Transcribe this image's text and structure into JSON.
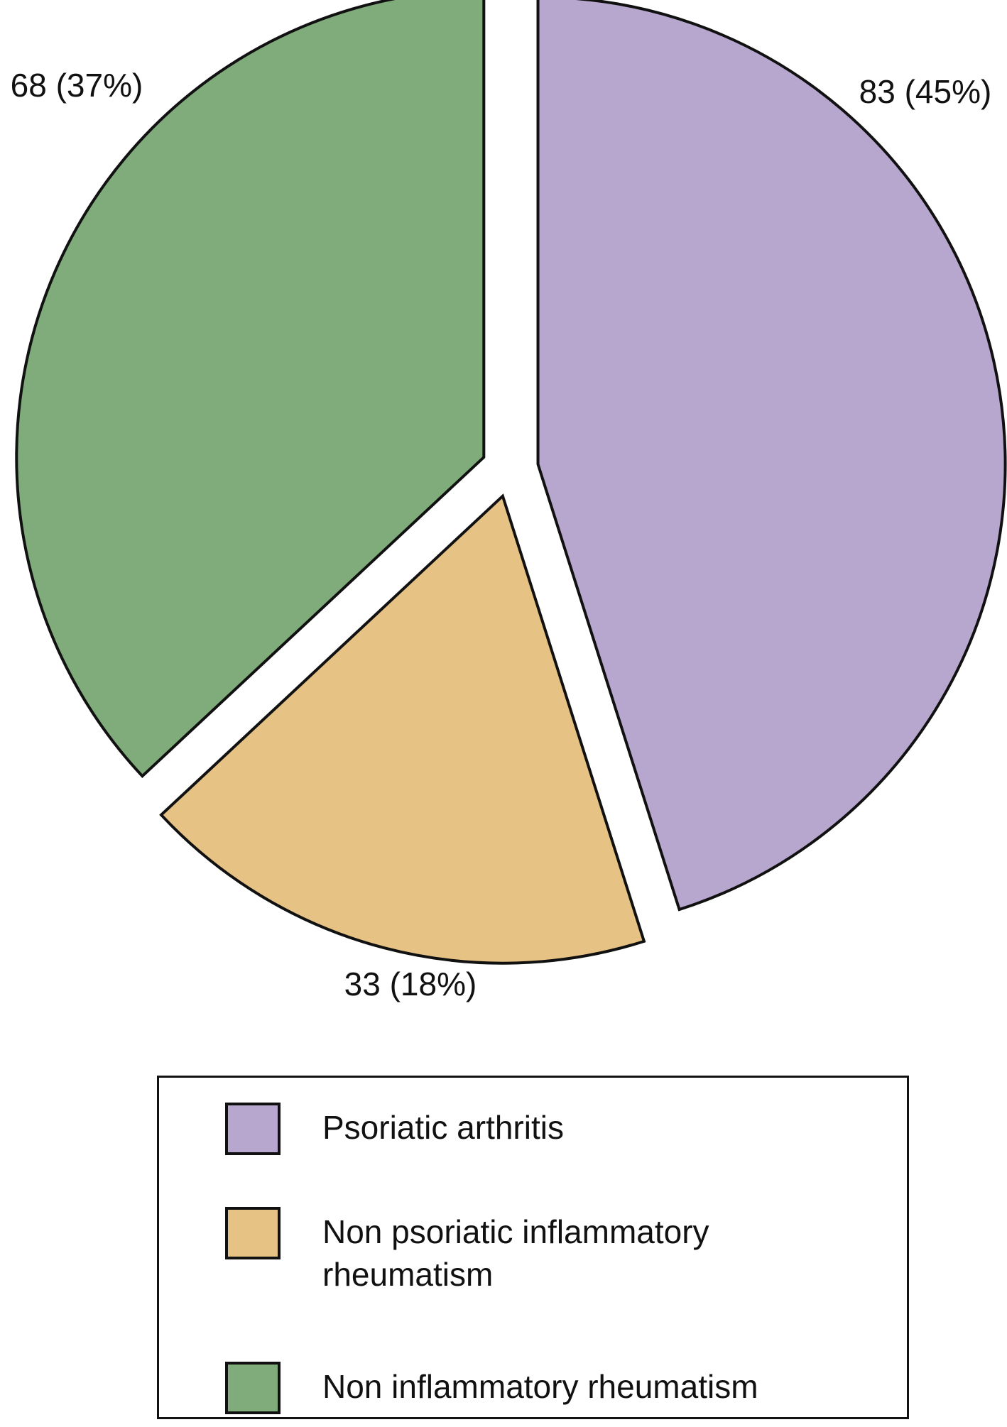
{
  "chart_data": {
    "type": "pie",
    "categories": [
      "Psoriatic arthritis",
      "Non psoriatic inflammatory rheumatism",
      "Non inflammatory rheumatism"
    ],
    "values": [
      83,
      33,
      68
    ],
    "value_labels": [
      "83 (45%)",
      "33 (18%)",
      "68 (37%)"
    ],
    "colors": [
      "#b7a7cf",
      "#e6c284",
      "#80ac7c"
    ],
    "legend": "bottom"
  }
}
